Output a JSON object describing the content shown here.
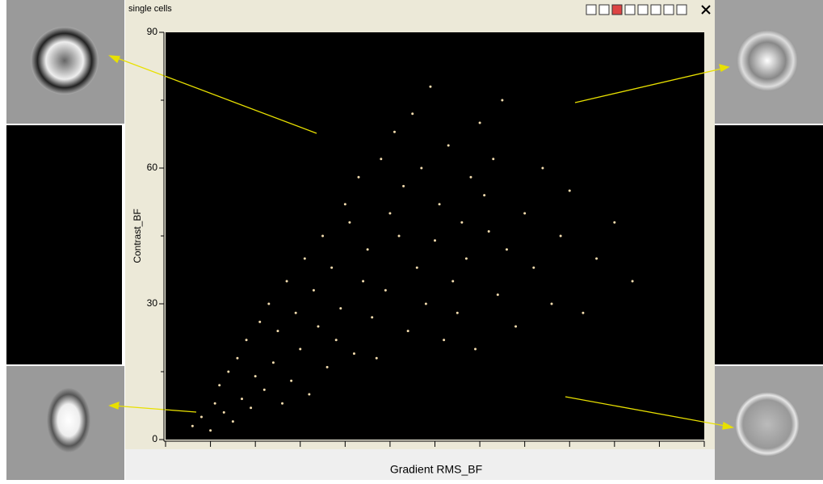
{
  "window": {
    "title": "single cells"
  },
  "chart_data": {
    "type": "scatter",
    "xlabel": "Gradient RMS_BF",
    "ylabel": "Contrast_BF",
    "color": "#f3dcae",
    "xlim": [
      0,
      12
    ],
    "ylim": [
      0,
      90
    ],
    "yticks": [
      0,
      30,
      60,
      90
    ],
    "x": [
      0.6,
      0.8,
      1.0,
      1.1,
      1.3,
      1.2,
      1.5,
      1.4,
      1.7,
      1.6,
      1.9,
      2.0,
      1.8,
      2.2,
      2.1,
      2.4,
      2.3,
      2.6,
      2.5,
      2.8,
      2.7,
      3.0,
      2.9,
      3.2,
      3.1,
      3.4,
      3.3,
      3.6,
      3.5,
      3.8,
      3.7,
      4.0,
      3.9,
      4.2,
      4.1,
      4.4,
      4.3,
      4.6,
      4.5,
      4.8,
      4.7,
      5.0,
      4.9,
      5.2,
      5.1,
      5.4,
      5.3,
      5.6,
      5.5,
      5.8,
      5.7,
      6.0,
      5.9,
      6.2,
      6.1,
      6.4,
      6.3,
      6.6,
      6.5,
      6.8,
      6.7,
      7.0,
      6.9,
      7.2,
      7.1,
      7.4,
      7.3,
      7.6,
      7.5,
      7.8,
      8.0,
      8.2,
      8.4,
      8.6,
      8.8,
      9.0,
      9.3,
      9.6,
      10.0,
      10.4
    ],
    "values": [
      3,
      5,
      2,
      8,
      6,
      12,
      4,
      15,
      9,
      18,
      7,
      14,
      22,
      11,
      26,
      17,
      30,
      8,
      24,
      13,
      35,
      20,
      28,
      10,
      40,
      25,
      33,
      16,
      45,
      22,
      38,
      52,
      29,
      19,
      48,
      35,
      58,
      27,
      42,
      62,
      18,
      50,
      33,
      45,
      68,
      24,
      56,
      38,
      72,
      30,
      60,
      44,
      78,
      22,
      52,
      35,
      65,
      48,
      28,
      58,
      40,
      70,
      20,
      46,
      54,
      32,
      62,
      42,
      75,
      25,
      50,
      38,
      60,
      30,
      45,
      55,
      28,
      40,
      48,
      35
    ]
  }
}
